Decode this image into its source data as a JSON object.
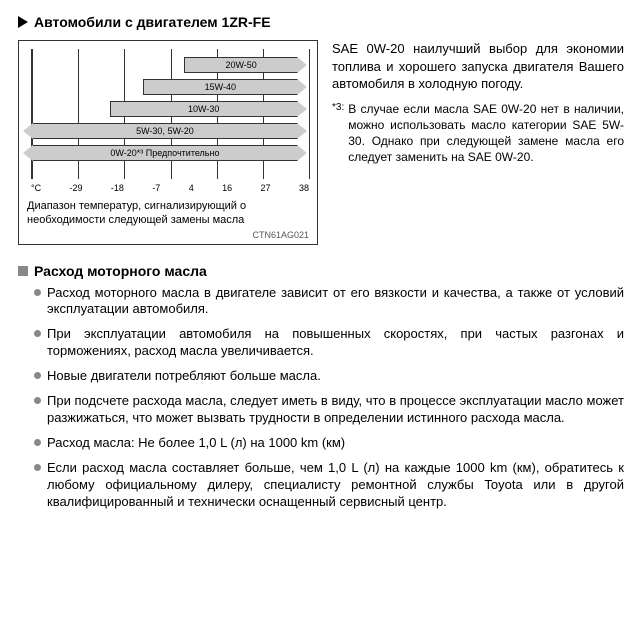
{
  "title": "Автомобили с двигателем 1ZR-FE",
  "chart": {
    "type": "bar",
    "temp_unit": "°C",
    "temps": [
      "-29",
      "-18",
      "-7",
      "4",
      "16",
      "27",
      "38"
    ],
    "bars": [
      {
        "label": "20W-50",
        "left_pct": 55,
        "right_pct": 100,
        "left_arrow": false
      },
      {
        "label": "15W-40",
        "left_pct": 40,
        "right_pct": 100,
        "left_arrow": false
      },
      {
        "label": "10W-30",
        "left_pct": 28,
        "right_pct": 100,
        "left_arrow": false
      },
      {
        "label": "5W-30, 5W-20",
        "left_pct": 0,
        "right_pct": 100,
        "left_arrow": true
      },
      {
        "label": "0W-20*³ Предпочтительно",
        "left_pct": 0,
        "right_pct": 100,
        "left_arrow": true
      }
    ],
    "caption": "Диапазон температур, сигнализирующий о необходимости следующей замены масла",
    "code": "CTN61AG021",
    "bar_fill": "#cccccc",
    "bar_border": "#333333",
    "grid_color": "#333333",
    "label_fontsize": 9
  },
  "right": {
    "p1": "SAE 0W-20 наилучший выбор для экономии топлива и хорошего запуска двигателя Вашего автомобиля в холодную погоду.",
    "footnote_marker": "*3:",
    "footnote": "В случае если масла SAE 0W-20 нет в наличии, можно использовать масло категории SAE 5W-30. Однако при следующей замене масла его следует заменить на SAE 0W-20."
  },
  "section2": {
    "title": "Расход моторного масла",
    "bullets": [
      "Расход моторного масла в двигателе зависит от его вязкости и качества, а также от условий эксплуатации автомобиля.",
      "При эксплуатации автомобиля на повышенных скоростях, при частых разгонах и торможениях, расход масла увеличивается.",
      "Новые двигатели потребляют больше масла.",
      "При подсчете расхода масла, следует иметь в виду, что в процессе эксплуатации масло может разжижаться, что может вызвать трудности в определении истинного расхода масла.",
      "Расход масла: Не более 1,0 L (л) на 1000 km (км)",
      "Если расход масла составляет больше, чем 1,0 L (л) на каждые 1000 km (км), обратитесь к любому официальному дилеру, специалисту ремонтной службы Toyota или в другой квалифицированный и технически оснащенный сервисный центр."
    ]
  }
}
